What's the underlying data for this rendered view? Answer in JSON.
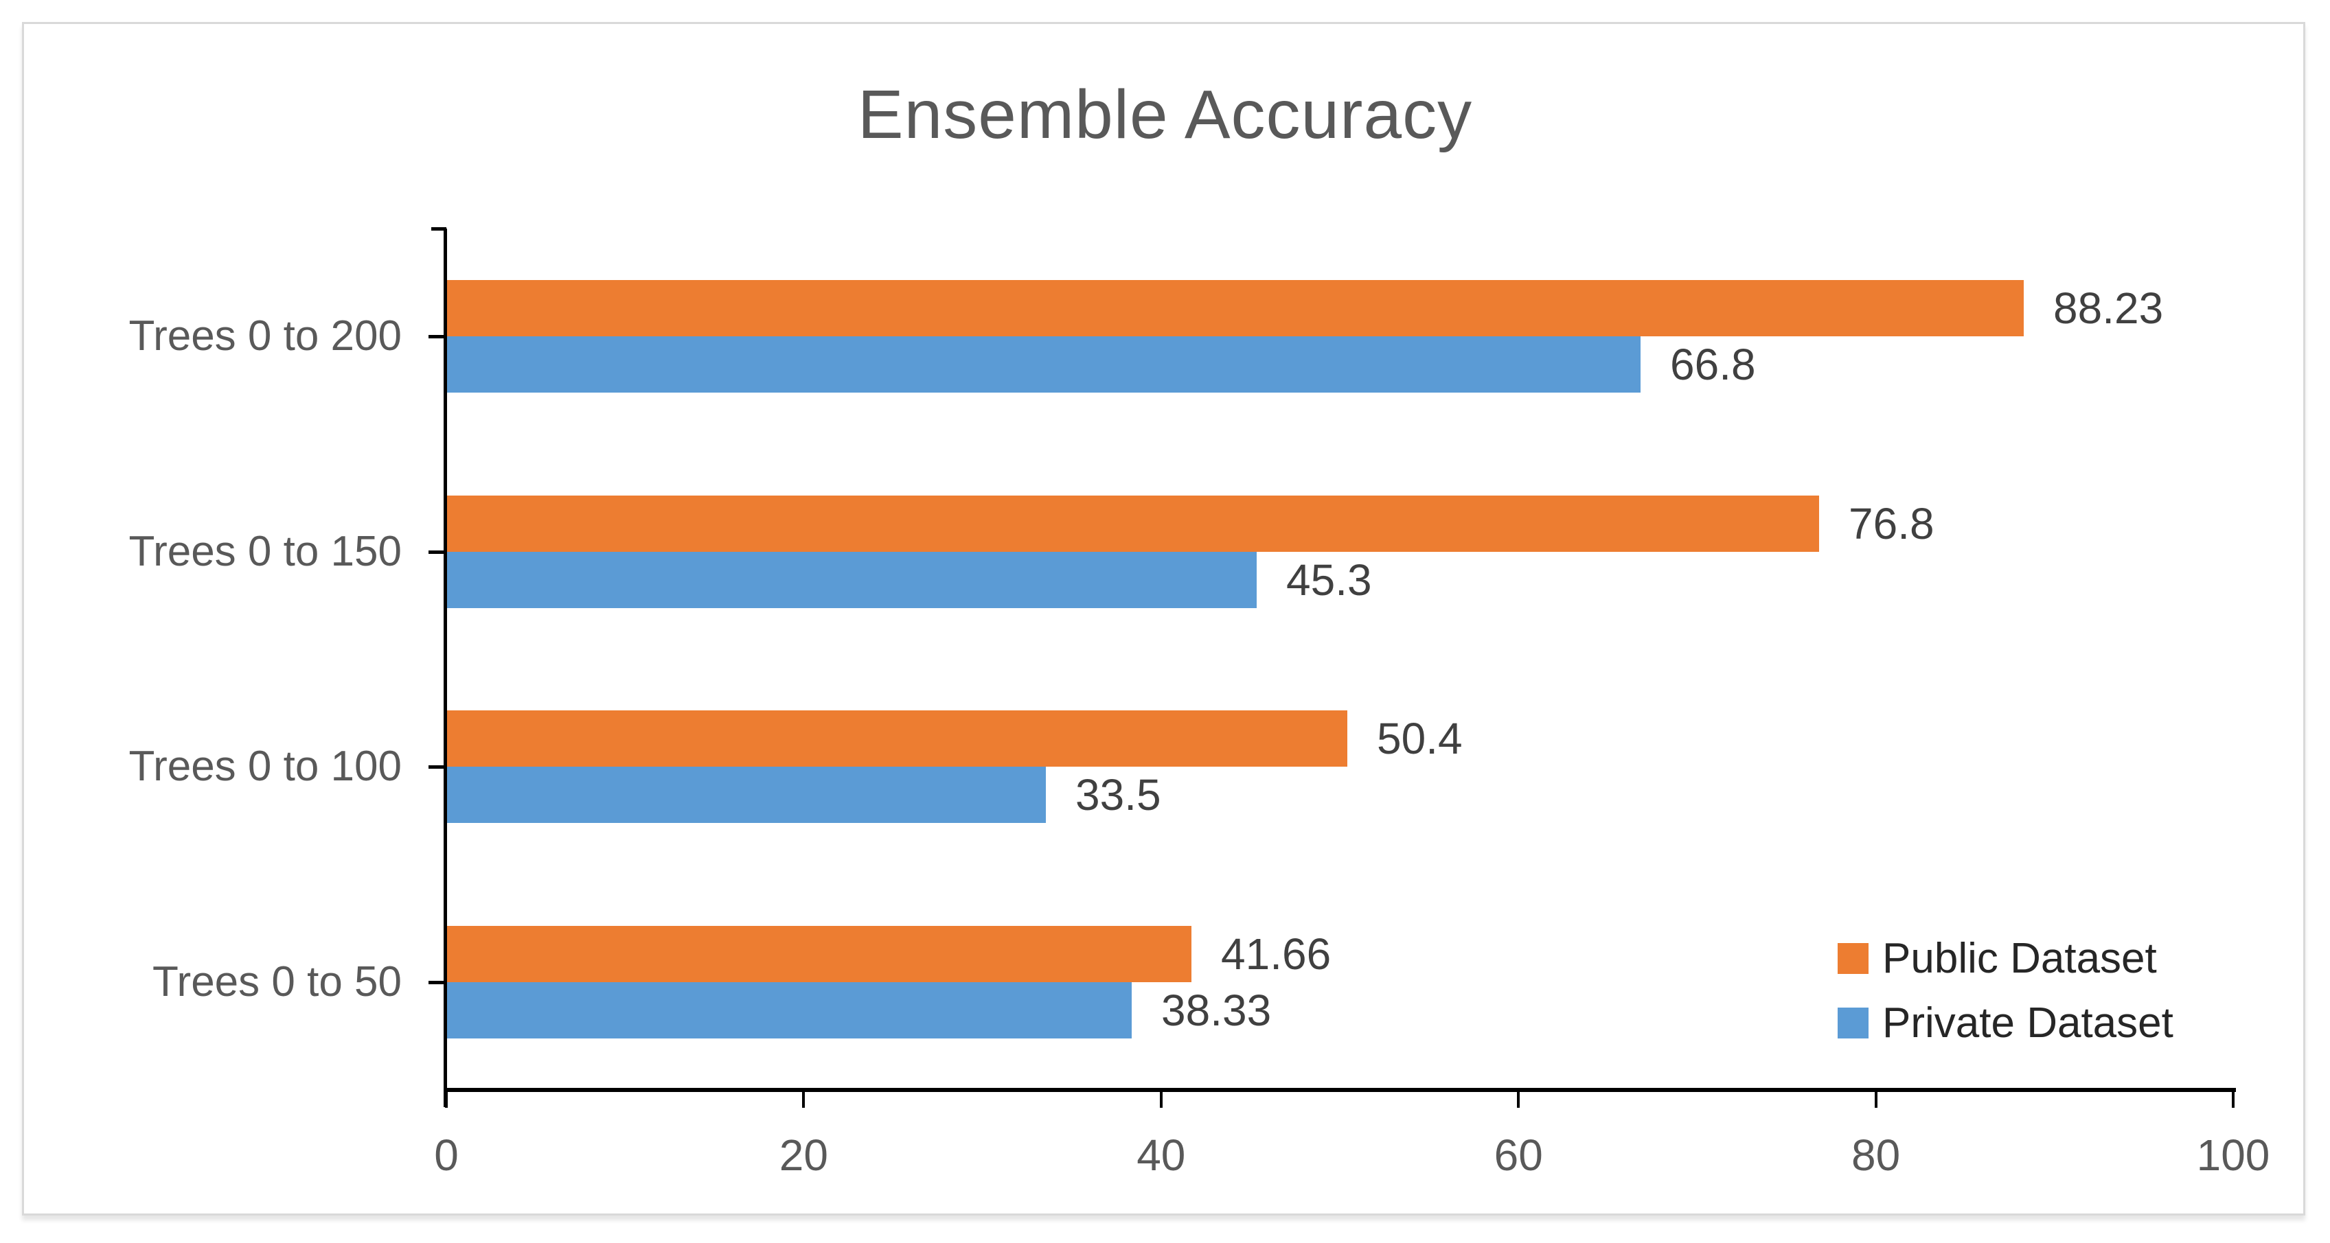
{
  "title": "Ensemble Accuracy",
  "colors": {
    "series_public": "#ED7D31",
    "series_private": "#5B9BD5",
    "title_text": "#595959",
    "axis_text": "#595959",
    "value_label_text": "#404040",
    "legend_text": "#262626",
    "axis_line": "#000000",
    "frame_border": "#D9D9D9",
    "background": "#FFFFFF"
  },
  "chart_data": {
    "type": "bar",
    "orientation": "horizontal",
    "title": "Ensemble Accuracy",
    "categories": [
      "Trees 0 to 200",
      "Trees 0 to 150",
      "Trees 0 to 100",
      "Trees 0 to 50"
    ],
    "series": [
      {
        "name": "Public Dataset",
        "color": "#ED7D31",
        "values": [
          88.23,
          76.8,
          50.4,
          41.66
        ]
      },
      {
        "name": "Private Dataset",
        "color": "#5B9BD5",
        "values": [
          66.8,
          45.3,
          33.5,
          38.33
        ]
      }
    ],
    "x_axis": {
      "min": 0,
      "max": 100,
      "ticks": [
        0,
        20,
        40,
        60,
        80,
        100
      ]
    },
    "y_axis": {
      "tick_marks": "category-centers"
    },
    "data_labels": true,
    "grid": false,
    "legend": {
      "position": "inside-bottom-right",
      "entries": [
        "Public Dataset",
        "Private Dataset"
      ]
    }
  }
}
